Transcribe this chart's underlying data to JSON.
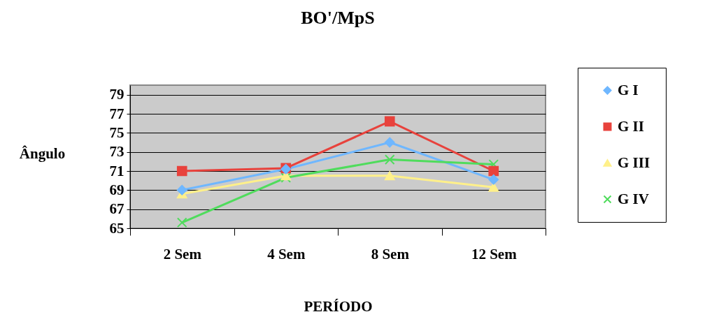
{
  "chart_data": {
    "type": "line",
    "title": "BO'/MpS",
    "xlabel": "PERÍODO",
    "ylabel": "Ângulo",
    "categories": [
      "2 Sem",
      "4 Sem",
      "8 Sem",
      "12 Sem"
    ],
    "series": [
      {
        "name": "G I",
        "color": "#6fb7ff",
        "marker": "diamond",
        "values": [
          69.0,
          71.2,
          74.0,
          70.1
        ]
      },
      {
        "name": "G II",
        "color": "#e8423c",
        "marker": "square",
        "values": [
          71.0,
          71.3,
          76.2,
          71.0
        ]
      },
      {
        "name": "G III",
        "color": "#fff08a",
        "marker": "triangle",
        "values": [
          68.6,
          70.5,
          70.5,
          69.3
        ]
      },
      {
        "name": "G IV",
        "color": "#4fdc5c",
        "marker": "cross",
        "values": [
          65.6,
          70.3,
          72.2,
          71.7
        ]
      }
    ],
    "ylim": [
      65,
      80
    ],
    "yticks": [
      65,
      67,
      69,
      71,
      73,
      75,
      77,
      79
    ],
    "grid": "y",
    "legend": "right",
    "line_style": "solid"
  }
}
